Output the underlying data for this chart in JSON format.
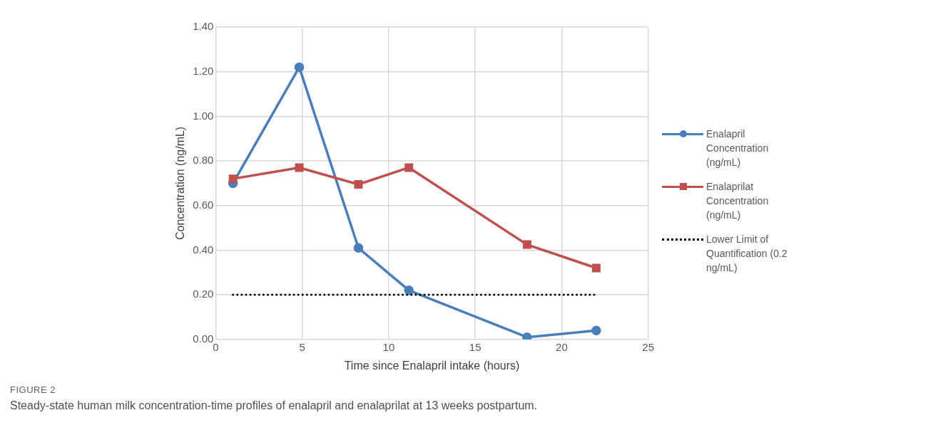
{
  "chart_data": {
    "type": "line",
    "xlabel": "Time since Enalapril intake (hours)",
    "ylabel": "Concentration (ng/mL)",
    "series": [
      {
        "name": "Enalapril Concentration (ng/mL)",
        "color": "#4a7ebb",
        "marker": "circle",
        "x": [
          1,
          4.83,
          8.25,
          11.17,
          18,
          22
        ],
        "values": [
          0.7,
          1.22,
          0.41,
          0.22,
          0.01,
          0.04
        ]
      },
      {
        "name": "Enalaprilat Concentration (ng/mL)",
        "color": "#c0504d",
        "marker": "square",
        "x": [
          1,
          4.83,
          8.25,
          11.17,
          18,
          22
        ],
        "values": [
          0.72,
          0.77,
          0.695,
          0.77,
          0.425,
          0.32
        ]
      },
      {
        "name": "Lower Limit of Quantification (0.2 ng/mL)",
        "color": "#000000",
        "marker": "none",
        "line_style": "dotted",
        "x": [
          1,
          22
        ],
        "values": [
          0.2,
          0.2
        ]
      }
    ],
    "xlim": [
      0,
      25
    ],
    "xticks": [
      0,
      5,
      10,
      15,
      20,
      25
    ],
    "ylim": [
      0,
      1.4
    ],
    "yticks": [
      {
        "value": 0,
        "label": "0.00"
      },
      {
        "value": 0.2,
        "label": "0.20"
      },
      {
        "value": 0.4,
        "label": "0.40"
      },
      {
        "value": 0.6,
        "label": "0.60"
      },
      {
        "value": 0.8,
        "label": "0.80"
      },
      {
        "value": 1.0,
        "label": "1.00"
      },
      {
        "value": 1.2,
        "label": "1.20"
      },
      {
        "value": 1.4,
        "label": "1.40"
      }
    ],
    "grid": true,
    "legend": "right",
    "annotations": [
      "FIGURE 2",
      "Steady-state human milk concentration-time profiles of enalapril and enalaprilat at 13 weeks postpartum."
    ]
  }
}
